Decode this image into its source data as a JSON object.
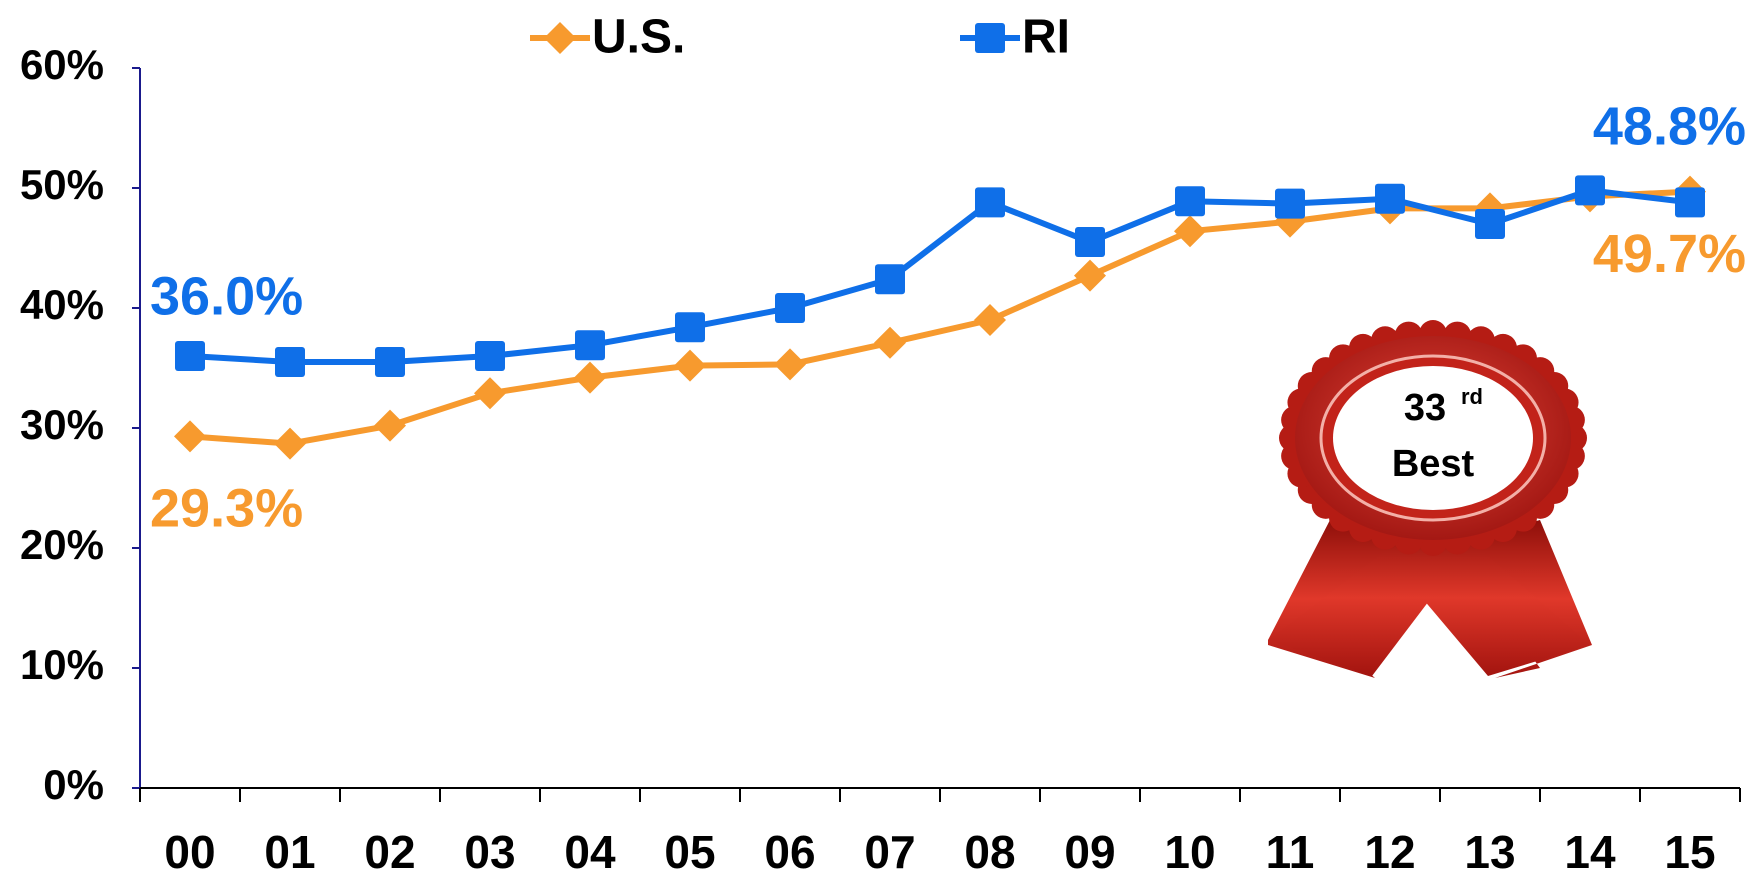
{
  "chart_data": {
    "type": "line",
    "categories": [
      "00",
      "01",
      "02",
      "03",
      "04",
      "05",
      "06",
      "07",
      "08",
      "09",
      "10",
      "11",
      "12",
      "13",
      "14",
      "15"
    ],
    "series": [
      {
        "name": "U.S.",
        "color": "#f79a2e",
        "marker": "diamond",
        "values": [
          29.3,
          28.7,
          30.2,
          32.9,
          34.2,
          35.2,
          35.3,
          37.1,
          39.0,
          42.7,
          46.4,
          47.2,
          48.3,
          48.3,
          49.3,
          49.7
        ],
        "value_labels": [
          "29.3%",
          null,
          null,
          null,
          null,
          null,
          null,
          null,
          null,
          null,
          null,
          null,
          null,
          null,
          null,
          "49.7%"
        ]
      },
      {
        "name": "RI",
        "color": "#0f6fe8",
        "marker": "square",
        "values": [
          36.0,
          35.5,
          35.5,
          36.0,
          36.9,
          38.4,
          40.0,
          42.4,
          48.8,
          45.5,
          48.9,
          48.7,
          49.1,
          47.0,
          49.8,
          48.8
        ],
        "value_labels": [
          "36.0%",
          null,
          null,
          null,
          null,
          null,
          null,
          null,
          null,
          null,
          null,
          null,
          null,
          null,
          null,
          "48.8%"
        ]
      }
    ],
    "ylim": [
      0,
      60
    ],
    "yticks": [
      {
        "value": 0,
        "label": "0%"
      },
      {
        "value": 10,
        "label": "10%"
      },
      {
        "value": 20,
        "label": "20%"
      },
      {
        "value": 30,
        "label": "30%"
      },
      {
        "value": 40,
        "label": "40%"
      },
      {
        "value": 50,
        "label": "50%"
      },
      {
        "value": 60,
        "label": "60%"
      }
    ],
    "grid": false,
    "badge": {
      "rank": "33",
      "suffix": "rd",
      "text": "Best"
    }
  }
}
